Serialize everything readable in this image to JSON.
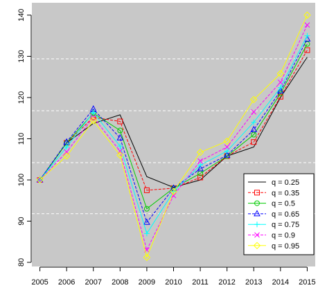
{
  "chart_data": {
    "type": "line",
    "title": "",
    "xlabel": "",
    "ylabel": "",
    "x": [
      2005,
      2006,
      2007,
      2008,
      2009,
      2010,
      2011,
      2012,
      2013,
      2014,
      2015
    ],
    "xlim": [
      2004.7,
      2015.3
    ],
    "ylim": [
      79,
      143
    ],
    "y_ticks": [
      80,
      90,
      100,
      110,
      120,
      130,
      140
    ],
    "x_tick_labels": [
      "2005",
      "2006",
      "2007",
      "2008",
      "2009",
      "2010",
      "2011",
      "2012",
      "2013",
      "2014",
      "2015"
    ],
    "background": "#c8c8c8",
    "grid": "horizontal-dashed-white",
    "legend_position": "bottom-right",
    "series": [
      {
        "name": "q = 0.25",
        "color": "#000000",
        "dash": "solid",
        "marker": "none",
        "values": [
          100,
          109,
          113.7,
          115.8,
          100.8,
          98.2,
          100,
          105.8,
          108,
          120,
          129.8
        ]
      },
      {
        "name": "q = 0.35",
        "color": "#ff0000",
        "dash": "dashed",
        "marker": "square",
        "values": [
          100,
          109,
          115.2,
          114.2,
          97.5,
          98,
          100.6,
          105.8,
          109.2,
          120.2,
          131.5
        ]
      },
      {
        "name": "q = 0.5",
        "color": "#00cc00",
        "dash": "solid",
        "marker": "circle",
        "values": [
          100,
          109,
          116.2,
          112,
          93,
          98,
          101.6,
          105.8,
          111,
          121,
          133
        ]
      },
      {
        "name": "q = 0.65",
        "color": "#0000ff",
        "dash": "dashed",
        "marker": "triangle",
        "values": [
          100,
          109.2,
          117.2,
          110.2,
          89.7,
          98,
          102.7,
          106,
          112.2,
          121.6,
          134.2
        ]
      },
      {
        "name": "q = 0.75",
        "color": "#00ffff",
        "dash": "solid",
        "marker": "plus",
        "values": [
          100,
          108,
          116.4,
          108.2,
          87,
          97.2,
          103.6,
          107,
          114,
          122.4,
          135
        ]
      },
      {
        "name": "q = 0.9",
        "color": "#ff00ff",
        "dash": "dashed",
        "marker": "cross",
        "values": [
          100,
          106.8,
          115.2,
          107,
          83,
          96.2,
          104.6,
          108,
          116.5,
          123.7,
          137.6
        ]
      },
      {
        "name": "q = 0.95",
        "color": "#ffff00",
        "dash": "solid",
        "marker": "diamond",
        "values": [
          100,
          105.8,
          114.4,
          106,
          81.2,
          97.2,
          106.7,
          109.4,
          119.5,
          125.8,
          140
        ]
      }
    ]
  }
}
